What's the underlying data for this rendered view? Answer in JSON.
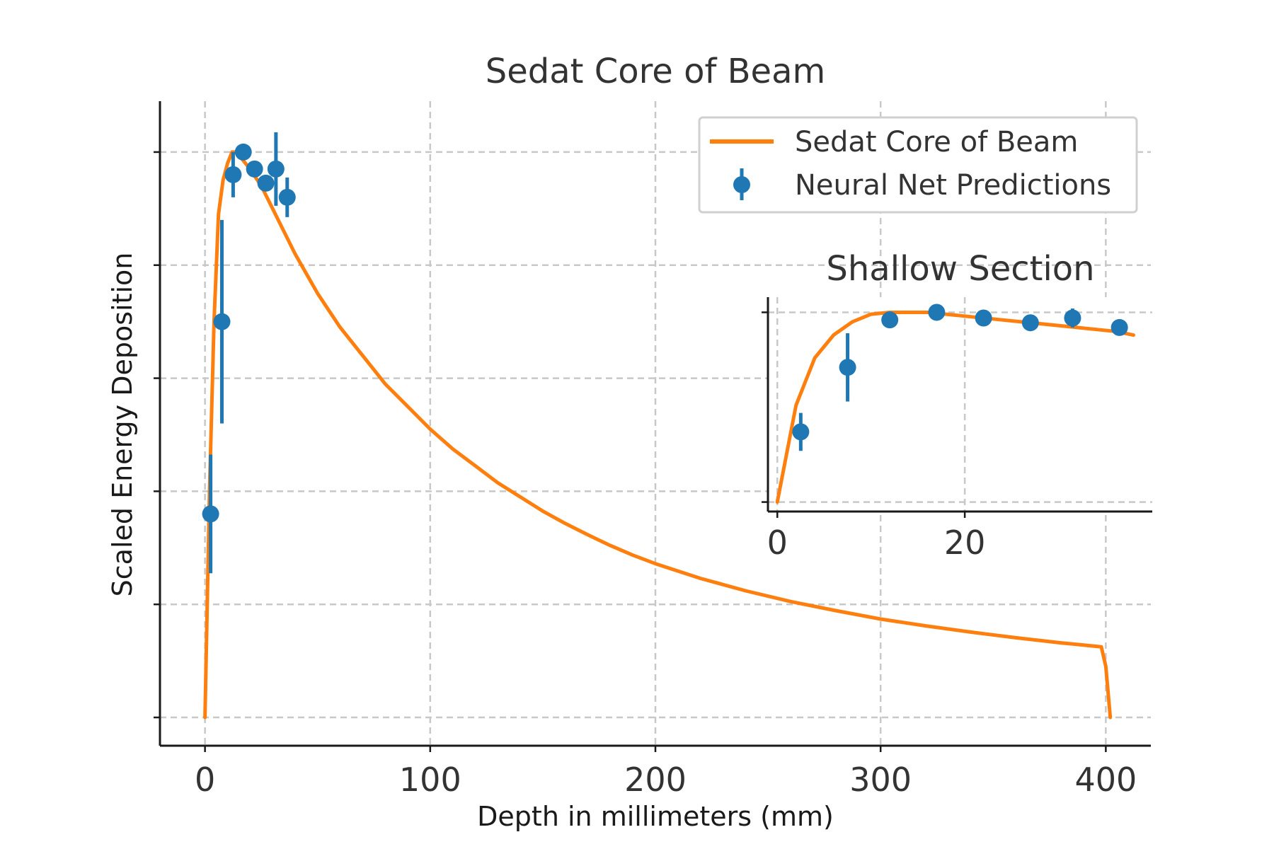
{
  "colors": {
    "curve": "#ff7f0e",
    "points": "#1f77b4",
    "grid": "#c8c8c8",
    "axis": "#1a1a1a",
    "text": "#333333"
  },
  "chart_data": [
    {
      "id": "main",
      "type": "line",
      "title": "Sedat Core of Beam",
      "xlabel": "Depth in millimeters (mm)",
      "ylabel": "Scaled Energy Deposition",
      "xlim": [
        -20,
        420
      ],
      "ylim": [
        -0.05,
        1.09
      ],
      "x_ticks": [
        0,
        100,
        200,
        300,
        400
      ],
      "x_tick_labels": [
        "0",
        "100",
        "200",
        "300",
        "400"
      ],
      "y_ticks": [
        0,
        0.2,
        0.4,
        0.6,
        0.8,
        1.0
      ],
      "y_tick_labels": [],
      "grid": true,
      "legend": {
        "placement": "top-right",
        "entries": [
          {
            "label": "Sedat Core of Beam",
            "kind": "line",
            "color": "#ff7f0e"
          },
          {
            "label": "Neural Net Predictions",
            "kind": "errorbar",
            "color": "#1f77b4"
          }
        ]
      },
      "series": [
        {
          "name": "Sedat Core of Beam",
          "kind": "line",
          "color": "#ff7f0e",
          "x": [
            0,
            2,
            4,
            6,
            8,
            10,
            12,
            14,
            16,
            18,
            20,
            25,
            30,
            35,
            40,
            50,
            60,
            70,
            80,
            90,
            100,
            110,
            120,
            130,
            140,
            150,
            160,
            170,
            180,
            190,
            200,
            220,
            240,
            260,
            280,
            300,
            320,
            340,
            360,
            380,
            398,
            400,
            402
          ],
          "y": [
            0,
            0.4,
            0.7,
            0.89,
            0.95,
            0.98,
            1.0,
            1.0,
            0.99,
            0.98,
            0.97,
            0.94,
            0.9,
            0.86,
            0.82,
            0.75,
            0.69,
            0.64,
            0.59,
            0.55,
            0.51,
            0.475,
            0.445,
            0.415,
            0.39,
            0.365,
            0.343,
            0.323,
            0.304,
            0.287,
            0.272,
            0.246,
            0.224,
            0.205,
            0.189,
            0.174,
            0.162,
            0.151,
            0.141,
            0.132,
            0.125,
            0.09,
            0
          ]
        },
        {
          "name": "Neural Net Predictions",
          "kind": "errorbar",
          "color": "#1f77b4",
          "x": [
            2.5,
            7.5,
            12.5,
            17,
            22,
            27,
            31.5,
            36.5
          ],
          "y": [
            0.36,
            0.7,
            0.96,
            1.0,
            0.97,
            0.945,
            0.97,
            0.92
          ],
          "yerr": [
            0.105,
            0.18,
            0.04,
            0.01,
            0.01,
            0.01,
            0.065,
            0.035
          ]
        }
      ]
    },
    {
      "id": "inset",
      "type": "line",
      "title": "Shallow Section",
      "xlim": [
        -1,
        40
      ],
      "ylim": [
        -0.05,
        1.08
      ],
      "x_ticks": [
        0,
        20
      ],
      "x_tick_labels": [
        "0",
        "20"
      ],
      "y_ticks": [
        0,
        1.0
      ],
      "y_tick_labels": [],
      "grid": true,
      "series": [
        {
          "name": "Sedat Core of Beam",
          "kind": "line",
          "color": "#ff7f0e",
          "x": [
            0,
            2,
            4,
            6,
            8,
            10,
            12,
            14,
            16,
            18,
            20,
            24,
            28,
            32,
            36,
            38
          ],
          "y": [
            0,
            0.51,
            0.76,
            0.88,
            0.95,
            0.99,
            1.0,
            1.0,
            1.0,
            0.99,
            0.98,
            0.96,
            0.94,
            0.92,
            0.9,
            0.88
          ]
        },
        {
          "name": "Neural Net Predictions",
          "kind": "errorbar",
          "color": "#1f77b4",
          "x": [
            2.5,
            7.5,
            12,
            17,
            22,
            27,
            31.5,
            36.5
          ],
          "y": [
            0.37,
            0.71,
            0.96,
            1.0,
            0.97,
            0.945,
            0.97,
            0.92
          ],
          "yerr": [
            0.1,
            0.18,
            0.02,
            0.01,
            0.01,
            0.01,
            0.05,
            0.02
          ]
        }
      ]
    }
  ]
}
